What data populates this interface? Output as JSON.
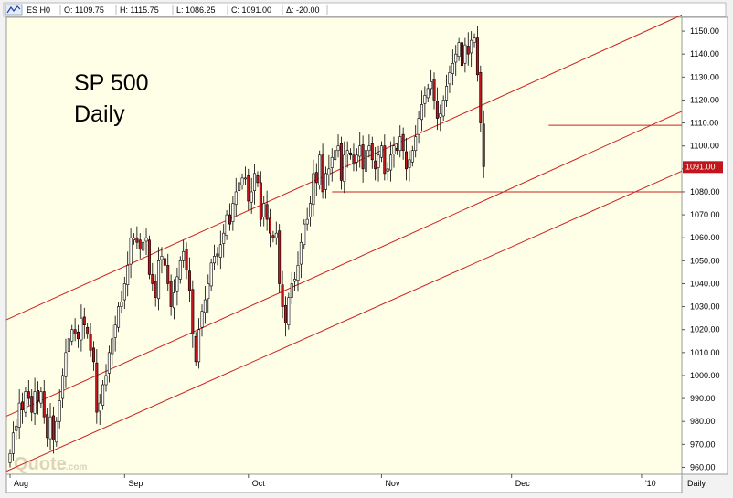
{
  "header": {
    "symbol": "ES H0",
    "open": "O: 1109.75",
    "high": "H: 1115.75",
    "low": "L: 1086.25",
    "close": "C: 1091.00",
    "change": "Δ: -20.00"
  },
  "overlay_text": {
    "line1": "SP 500",
    "line2": "Daily"
  },
  "watermark": {
    "main": "Quote",
    "suffix": ".com"
  },
  "price_tag": "1091.00",
  "period_label": "Daily",
  "colors": {
    "background": "#fffee6",
    "down_candle": "#c0161c",
    "up_candle": "#ffffff",
    "trendline": "#cc2222",
    "price_tag": "#c0161c"
  },
  "chart_data": {
    "type": "candlestick",
    "y_ticks": [
      "1150.00",
      "1140.00",
      "1130.00",
      "1120.00",
      "1110.00",
      "1100.00",
      "1090.00",
      "1080.00",
      "1070.00",
      "1060.00",
      "1050.00",
      "1040.00",
      "1030.00",
      "1020.00",
      "1010.00",
      "1000.00",
      "990.00",
      "980.00",
      "970.00",
      "960.00"
    ],
    "ylim": [
      957,
      1156
    ],
    "x_ticks": [
      "Aug",
      "Sep",
      "Oct",
      "Nov",
      "Dec",
      "'10"
    ],
    "x_tick_bars": [
      0,
      37,
      77,
      120,
      162,
      204
    ],
    "close_values": [
      966,
      975,
      978,
      988,
      985,
      993,
      990,
      984,
      993,
      989,
      993,
      982,
      973,
      982,
      972,
      980,
      989,
      1000,
      1010,
      1016,
      1020,
      1018,
      1016,
      1025,
      1022,
      1018,
      1011,
      1006,
      984,
      988,
      996,
      1000,
      1010,
      1016,
      1022,
      1030,
      1032,
      1040,
      1048,
      1060,
      1060,
      1058,
      1055,
      1058,
      1060,
      1044,
      1040,
      1034,
      1050,
      1052,
      1048,
      1040,
      1030,
      1036,
      1043,
      1050,
      1054,
      1046,
      1037,
      1018,
      1006,
      1020,
      1028,
      1033,
      1040,
      1049,
      1052,
      1052,
      1057,
      1062,
      1070,
      1066,
      1075,
      1080,
      1084,
      1086,
      1086,
      1076,
      1080,
      1088,
      1084,
      1068,
      1075,
      1068,
      1062,
      1060,
      1062,
      1040,
      1030,
      1023,
      1034,
      1040,
      1042,
      1048,
      1058,
      1066,
      1068,
      1075,
      1088,
      1084,
      1096,
      1080,
      1088,
      1090,
      1095,
      1098,
      1100,
      1085,
      1096,
      1098,
      1096,
      1092,
      1096,
      1100,
      1090,
      1098,
      1100,
      1094,
      1090,
      1096,
      1100,
      1088,
      1090,
      1096,
      1100,
      1098,
      1104,
      1098,
      1090,
      1094,
      1098,
      1104,
      1112,
      1118,
      1122,
      1125,
      1128,
      1120,
      1112,
      1114,
      1120,
      1126,
      1132,
      1136,
      1140,
      1145,
      1135,
      1144,
      1140,
      1146,
      1147,
      1131,
      1110,
      1091
    ],
    "series": [
      {
        "name": "ES H0",
        "ohlc_summary": "daily OHLC candles, Aug 2009 – Jan 2010"
      }
    ],
    "trendlines": [
      {
        "from": [
          0,
          1025
        ],
        "to": [
          212,
          1154
        ]
      },
      {
        "from": [
          0,
          983
        ],
        "to": [
          212,
          1112
        ]
      },
      {
        "from": [
          0,
          959
        ],
        "to": [
          212,
          1086
        ]
      }
    ],
    "horizontal_lines": [
      {
        "value": 1080,
        "from_bar": 104
      },
      {
        "value": 1109,
        "from_bar": 174
      }
    ],
    "grid": false
  }
}
